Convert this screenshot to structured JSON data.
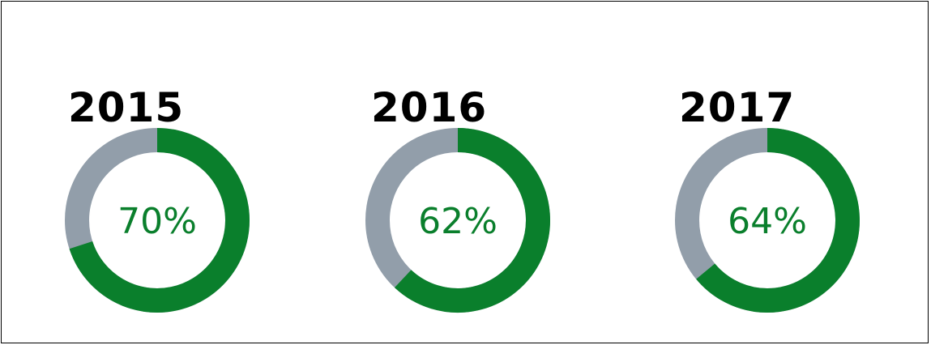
{
  "colors": {
    "primary": "#0a7f2c",
    "remainder": "#929eaa",
    "year_text": "#000000",
    "background": "#ffffff"
  },
  "chart_data": [
    {
      "type": "pie",
      "title": "2015",
      "values": [
        70,
        30
      ],
      "value_label": "70%"
    },
    {
      "type": "pie",
      "title": "2016",
      "values": [
        62,
        38
      ],
      "value_label": "62%"
    },
    {
      "type": "pie",
      "title": "2017",
      "values": [
        64,
        36
      ],
      "value_label": "64%"
    }
  ]
}
